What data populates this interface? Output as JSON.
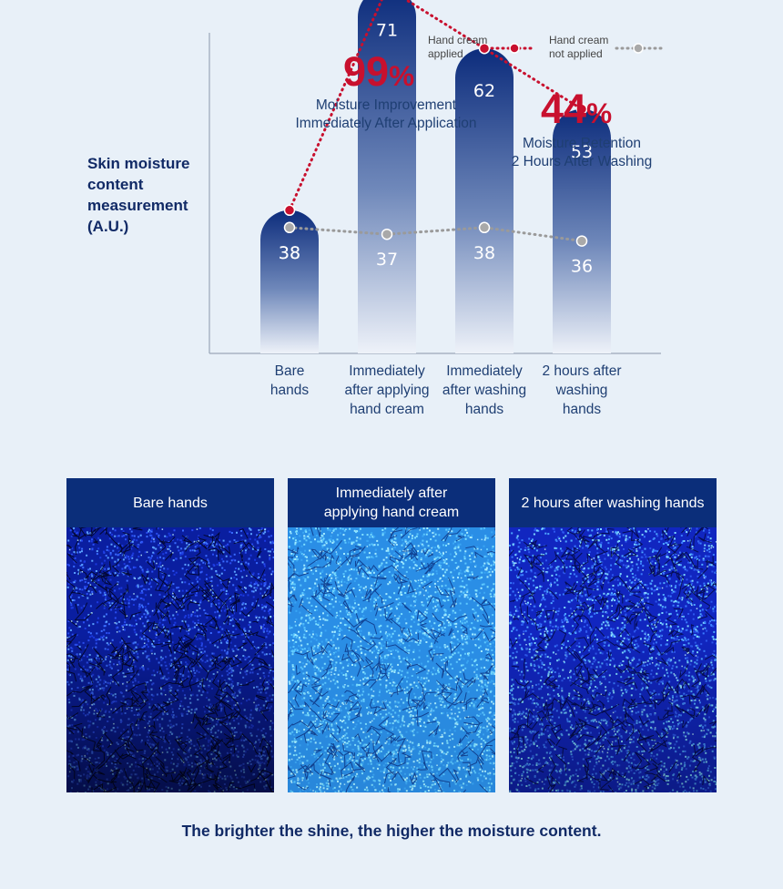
{
  "chart_data": {
    "type": "bar",
    "ylabel": "Skin moisture content measurement (A.U.)",
    "categories": [
      "Bare hands",
      "Immediately after applying hand cream",
      "Immediately after washing hands",
      "2 hours after washing hands"
    ],
    "category_lines": [
      [
        "Bare",
        "hands"
      ],
      [
        "Immediately",
        "after applying",
        "hand cream"
      ],
      [
        "Immediately",
        "after washing",
        "hands"
      ],
      [
        "2 hours after",
        "washing",
        "hands"
      ]
    ],
    "series": [
      {
        "name": "Hand cream applied",
        "values": [
          38,
          71,
          62,
          53
        ],
        "color": "#c8102e",
        "style": "dotted line, shown as bars"
      },
      {
        "name": "Hand cream not applied",
        "values": [
          38,
          37,
          38,
          36
        ],
        "color": "#9a9a9a",
        "style": "dotted line"
      }
    ],
    "legend": [
      {
        "line1": "Hand cream",
        "line2": "applied"
      },
      {
        "line1": "Hand cream",
        "line2": "not applied"
      }
    ],
    "legend_position": "top-right",
    "annotations": [
      {
        "value": "99",
        "symbol": "%",
        "line1": "Moisture Improvement",
        "line2": "Immediately After Application"
      },
      {
        "value": "44",
        "symbol": "%",
        "line1": "Moisture Retention",
        "line2": "2 Hours After Washing"
      }
    ],
    "grid": false
  },
  "panels": [
    {
      "title": "Bare hands",
      "brightness": "low"
    },
    {
      "title": "Immediately after applying hand cream",
      "brightness": "high"
    },
    {
      "title": "2 hours after washing hands",
      "brightness": "medium"
    }
  ],
  "caption": "The brighter the shine, the higher the moisture content.",
  "colors": {
    "navy": "#0b2e7a",
    "accent_red": "#c8102e",
    "grey": "#9a9a9a",
    "background": "#e8f0f8"
  }
}
